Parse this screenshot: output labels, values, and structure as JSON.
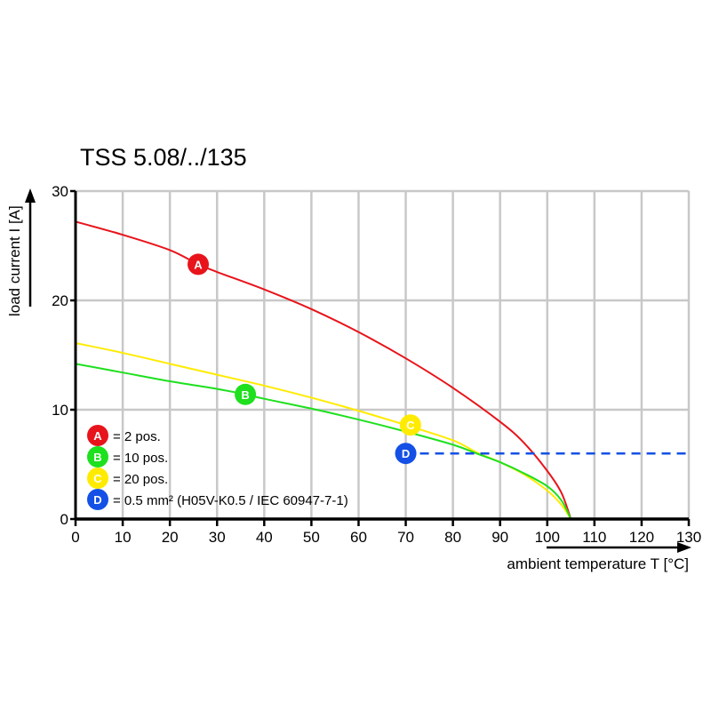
{
  "chart_data": {
    "type": "line",
    "title": "TSS 5.08/../135",
    "xlabel": "ambient temperature T [°C]",
    "ylabel": "load current I [A]",
    "xlim": [
      0,
      130
    ],
    "ylim": [
      0,
      30
    ],
    "xticks": [
      0,
      10,
      20,
      30,
      40,
      50,
      60,
      70,
      80,
      90,
      100,
      110,
      120,
      130
    ],
    "yticks": [
      0,
      10,
      20,
      30
    ],
    "grid": true,
    "legend_position": "bottom-left",
    "series": [
      {
        "name": "A",
        "label": "= 2 pos.",
        "color": "#e8141b",
        "x": [
          0,
          10,
          20,
          26,
          30,
          40,
          50,
          60,
          70,
          80,
          90,
          95,
          100,
          103,
          105
        ],
        "y": [
          27.2,
          26.0,
          24.6,
          23.3,
          22.6,
          21.0,
          19.2,
          17.1,
          14.7,
          12.0,
          8.9,
          7.0,
          4.4,
          2.4,
          0
        ],
        "marker": {
          "x": 26,
          "y": 23.3
        }
      },
      {
        "name": "C",
        "label": "= 20 pos.",
        "color": "#ffeb00",
        "x": [
          0,
          10,
          20,
          30,
          40,
          50,
          60,
          70,
          80,
          85,
          90,
          95,
          100,
          103,
          105
        ],
        "y": [
          16.1,
          15.2,
          14.2,
          13.2,
          12.2,
          11.1,
          9.9,
          8.6,
          7.2,
          6.1,
          5.2,
          4.1,
          2.6,
          1.3,
          0
        ],
        "marker": {
          "x": 71,
          "y": 8.6
        }
      },
      {
        "name": "B",
        "label": "= 10 pos.",
        "color": "#1ee01e",
        "x": [
          0,
          10,
          20,
          30,
          36,
          40,
          50,
          60,
          70,
          80,
          85,
          90,
          95,
          100,
          103,
          105
        ],
        "y": [
          14.2,
          13.4,
          12.6,
          11.9,
          11.4,
          11.0,
          10.1,
          9.1,
          8.0,
          6.8,
          6.0,
          5.2,
          4.2,
          3.0,
          1.7,
          0
        ],
        "marker": {
          "x": 36,
          "y": 11.4
        }
      },
      {
        "name": "D",
        "label": "= 0.5 mm² (H05V-K0.5 / IEC 60947-7-1)",
        "color": "#1450e6",
        "style": "dashed",
        "x": [
          70,
          130
        ],
        "y": [
          6,
          6
        ],
        "marker": {
          "x": 70,
          "y": 6
        }
      }
    ],
    "legend_order": [
      "A",
      "B",
      "C",
      "D"
    ]
  }
}
